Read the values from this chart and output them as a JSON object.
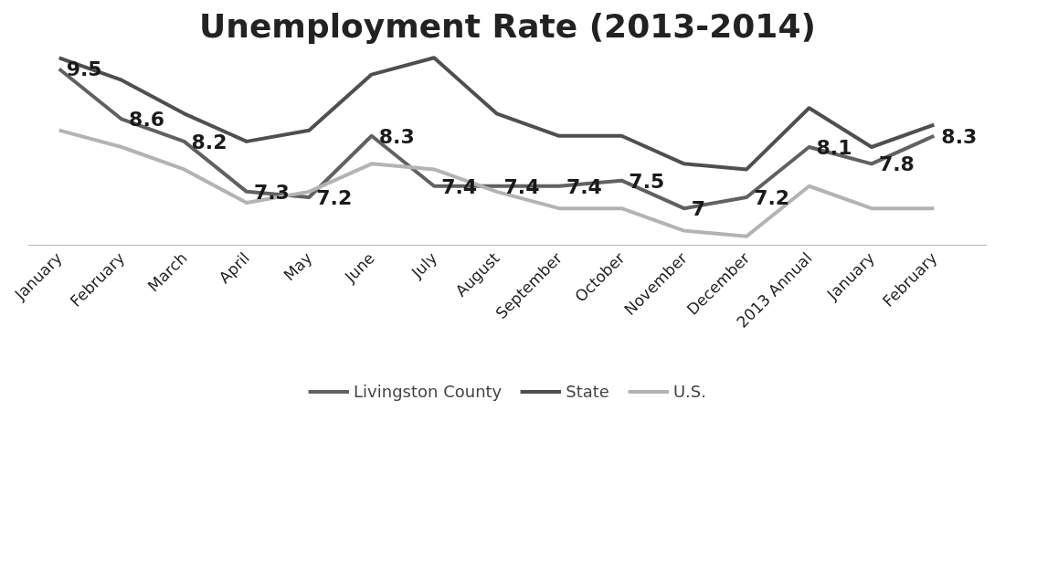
{
  "chart_data": {
    "type": "line",
    "title": "Unemployment Rate (2013-2014)",
    "categories": [
      "January",
      "February",
      "March",
      "April",
      "May",
      "June",
      "July",
      "August",
      "September",
      "October",
      "November",
      "December",
      "2013 Annual",
      "January",
      "February"
    ],
    "series": [
      {
        "name": "Livingston County",
        "color": "#616161",
        "values": [
          9.5,
          8.6,
          8.2,
          7.3,
          7.2,
          8.3,
          7.4,
          7.4,
          7.4,
          7.5,
          7.0,
          7.2,
          8.1,
          7.8,
          8.3
        ],
        "value_labels": [
          "9.5",
          "8.6",
          "8.2",
          "7.3",
          "7.2",
          "8.3",
          "7.4",
          "7.4",
          "7.4",
          "7.5",
          "7",
          "7.2",
          "8.1",
          "7.8",
          "8.3"
        ]
      },
      {
        "name": "State",
        "color": "#4f4f4f",
        "values": [
          9.7,
          9.3,
          8.7,
          8.2,
          8.4,
          9.4,
          9.7,
          8.7,
          8.3,
          8.3,
          7.8,
          7.7,
          8.8,
          8.1,
          8.5
        ]
      },
      {
        "name": "U.S.",
        "color": "#b3b3b3",
        "values": [
          8.4,
          8.1,
          7.7,
          7.1,
          7.3,
          7.8,
          7.7,
          7.3,
          7.0,
          7.0,
          6.6,
          6.5,
          7.4,
          7.0,
          7.0
        ]
      }
    ],
    "tick_labels": "x",
    "grid": false,
    "legend": "bottom",
    "marker": "none",
    "line_style": "solid"
  }
}
